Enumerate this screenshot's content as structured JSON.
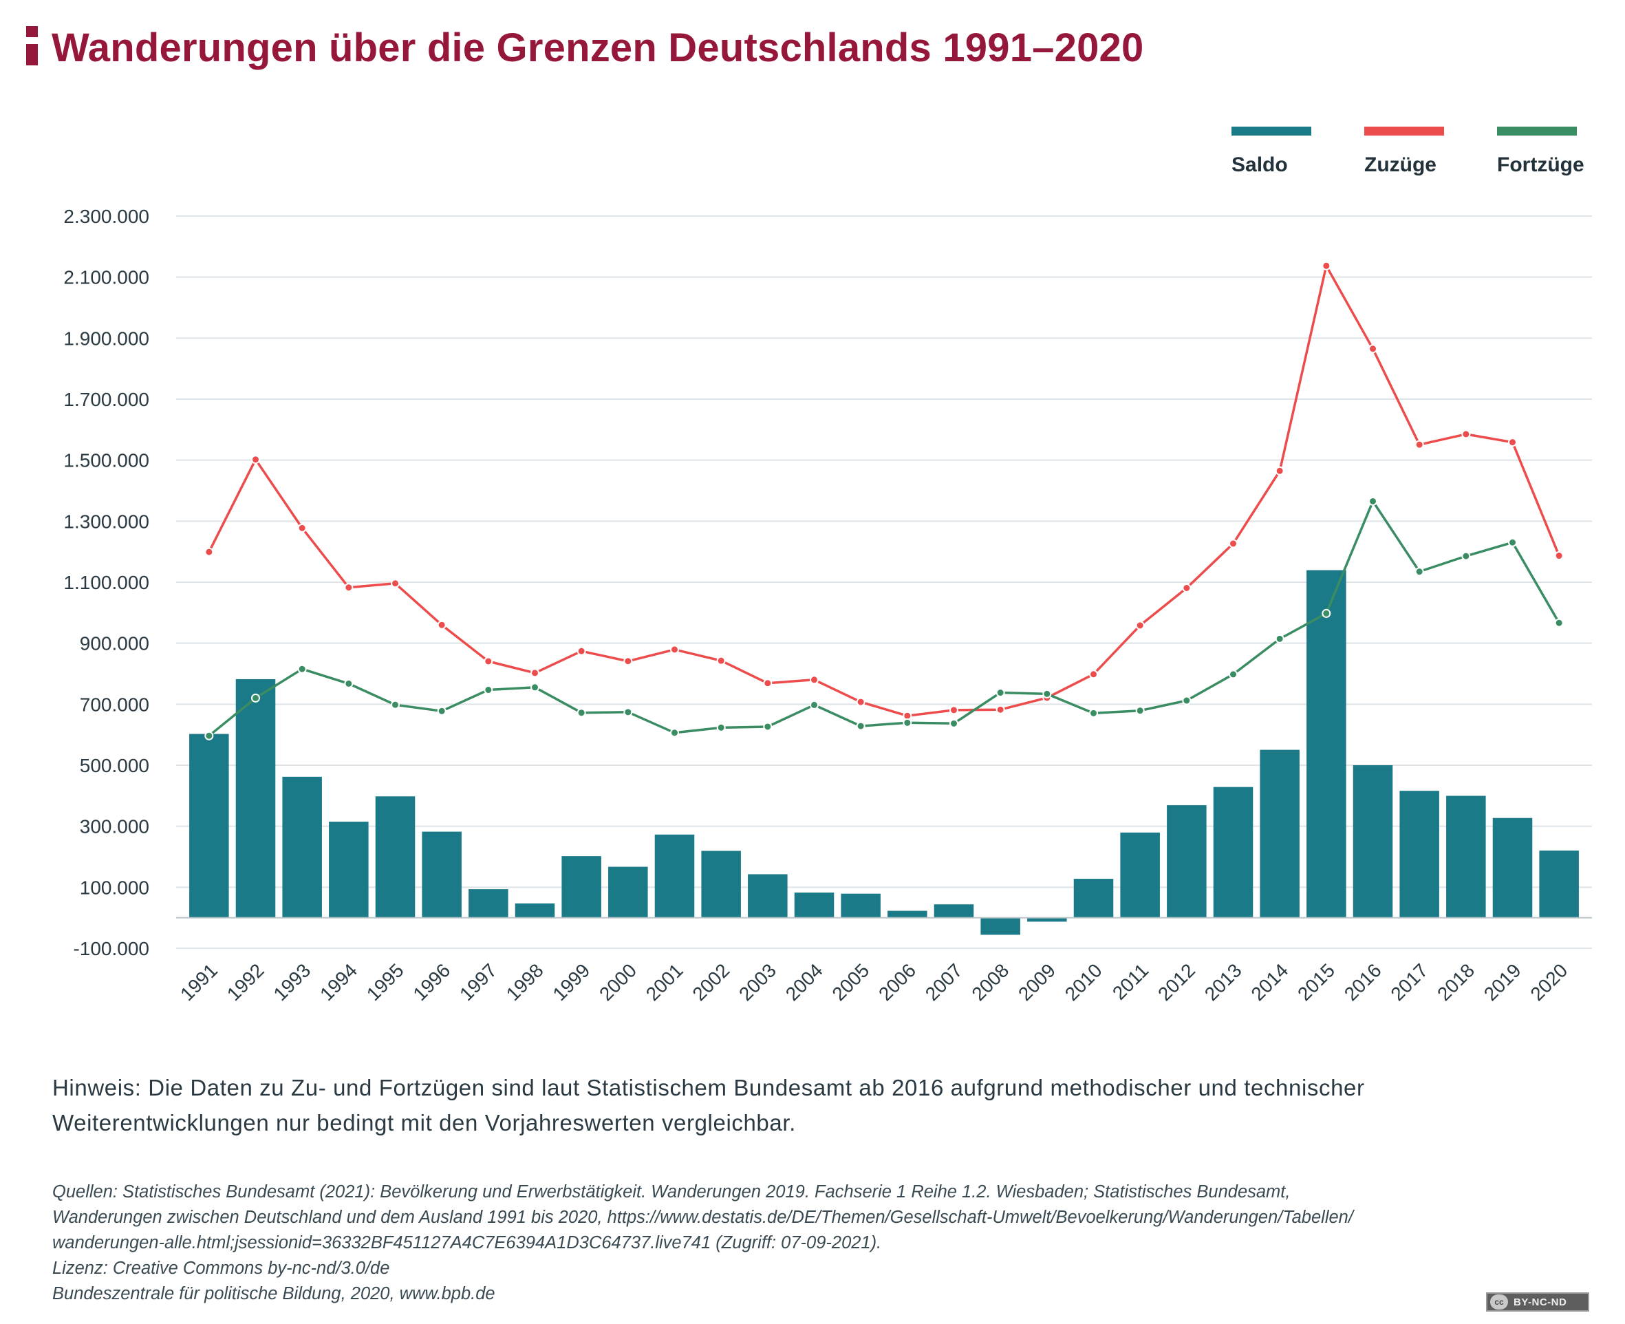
{
  "header": {
    "title": "Wanderungen über die Grenzen Deutschlands 1991–2020"
  },
  "legend": [
    {
      "label": "Saldo",
      "color": "#1b7a87"
    },
    {
      "label": "Zuzüge",
      "color": "#ec4c4c"
    },
    {
      "label": "Fortzüge",
      "color": "#3a8c62"
    }
  ],
  "chart_data": {
    "type": "bar+line",
    "title": "Wanderungen über die Grenzen Deutschlands 1991–2020",
    "xlabel": "",
    "ylabel": "",
    "ylim": [
      -100000,
      2300000
    ],
    "yticks": [
      -100000,
      100000,
      300000,
      500000,
      700000,
      900000,
      1100000,
      1300000,
      1500000,
      1700000,
      1900000,
      2100000,
      2300000
    ],
    "ytick_labels": [
      "-100.000",
      "100.000",
      "300.000",
      "500.000",
      "700.000",
      "900.000",
      "1.100.000",
      "1.300.000",
      "1.500.000",
      "1.700.000",
      "1.900.000",
      "2.100.000",
      "2.300.000"
    ],
    "grid": true,
    "legend_position": "top-right",
    "categories": [
      "1991",
      "1992",
      "1993",
      "1994",
      "1995",
      "1996",
      "1997",
      "1998",
      "1999",
      "2000",
      "2001",
      "2002",
      "2003",
      "2004",
      "2005",
      "2006",
      "2007",
      "2008",
      "2009",
      "2010",
      "2011",
      "2012",
      "2013",
      "2014",
      "2015",
      "2016",
      "2017",
      "2018",
      "2019",
      "2020"
    ],
    "series": [
      {
        "name": "Saldo",
        "type": "bar",
        "color": "#1b7a87",
        "values": [
          602523,
          782071,
          462096,
          314998,
          397935,
          282197,
          93664,
          47098,
          201975,
          167120,
          272723,
          219288,
          142645,
          82543,
          78953,
          22791,
          43912,
          -55743,
          -12782,
          127677,
          279330,
          368945,
          428607,
          550483,
          1139402,
          499944,
          416080,
          399680,
          327060,
          220251
        ]
      },
      {
        "name": "Zuzüge",
        "type": "line",
        "color": "#ec4c4c",
        "values": [
          1198978,
          1502198,
          1277408,
          1082553,
          1096048,
          959691,
          840633,
          802456,
          874023,
          841158,
          879217,
          842543,
          768975,
          780175,
          707352,
          661855,
          680766,
          682146,
          721014,
          798282,
          958299,
          1080936,
          1226493,
          1464724,
          2136954,
          1865122,
          1550721,
          1585112,
          1558612,
          1186702
        ]
      },
      {
        "name": "Fortzüge",
        "type": "line",
        "color": "#3a8c62",
        "values": [
          596455,
          720127,
          815312,
          767555,
          698113,
          677494,
          746969,
          755358,
          672048,
          674038,
          606494,
          623255,
          626330,
          697632,
          628399,
          639064,
          636854,
          737889,
          733796,
          670605,
          678969,
          711991,
          797886,
          914241,
          997552,
          1365178,
          1134641,
          1185432,
          1230252,
          966451
        ]
      }
    ]
  },
  "note": {
    "line1": "Hinweis: Die Daten zu Zu- und Fortzügen sind laut Statistischem Bundesamt ab 2016 aufgrund methodischer und technischer",
    "line2": "Weiterentwicklungen nur bedingt mit den Vorjahreswerten vergleichbar."
  },
  "sources": {
    "line1": "Quellen: Statistisches Bundesamt (2021): Bevölkerung und Erwerbstätigkeit. Wanderungen 2019. Fachserie 1 Reihe 1.2. Wiesbaden; Statistisches Bundesamt,",
    "line2": "Wanderungen zwischen Deutschland und dem Ausland 1991 bis 2020, https://www.destatis.de/DE/Themen/Gesellschaft-Umwelt/Bevoelkerung/Wanderungen/Tabellen/",
    "line3": "wanderungen-alle.html;jsessionid=36332BF451127A4C7E6394A1D3C64737.live741 (Zugriff: 07-09-2021).",
    "line4": "Lizenz: Creative Commons by-nc-nd/3.0/de",
    "line5": "Bundeszentrale für politische Bildung, 2020, www.bpb.de"
  },
  "license_badge": {
    "icon": "cc-icon",
    "cc_label": "cc",
    "label": "BY-NC-ND"
  }
}
